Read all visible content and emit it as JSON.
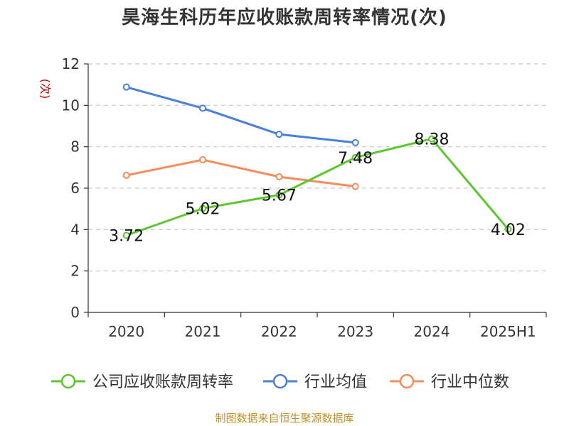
{
  "title": "昊海生科历年应收账款周转率情况(次)",
  "source": "制图数据来自恒生聚源数据库",
  "chart_data": {
    "type": "line",
    "title": "昊海生科历年应收账款周转率情况(次)",
    "ylabel": "(次)",
    "xlabel": "",
    "categories": [
      "2020",
      "2021",
      "2022",
      "2023",
      "2024",
      "2025H1"
    ],
    "ylim": [
      0,
      12
    ],
    "yticks": [
      0,
      2,
      4,
      6,
      8,
      10,
      12
    ],
    "grid": true,
    "legend_position": "bottom",
    "series": [
      {
        "name": "公司应收账款周转率",
        "color": "#5cc62f",
        "values": [
          3.72,
          5.02,
          5.67,
          7.48,
          8.38,
          4.02
        ],
        "labels": [
          "3.72",
          "5.02",
          "5.67",
          "7.48",
          "8.38",
          "4.02"
        ]
      },
      {
        "name": "行业均值",
        "color": "#4a7fd9",
        "values": [
          10.88,
          9.86,
          8.6,
          8.2,
          null,
          null
        ]
      },
      {
        "name": "行业中位数",
        "color": "#f58c5a",
        "values": [
          6.62,
          7.37,
          6.55,
          6.08,
          null,
          null
        ]
      }
    ]
  }
}
